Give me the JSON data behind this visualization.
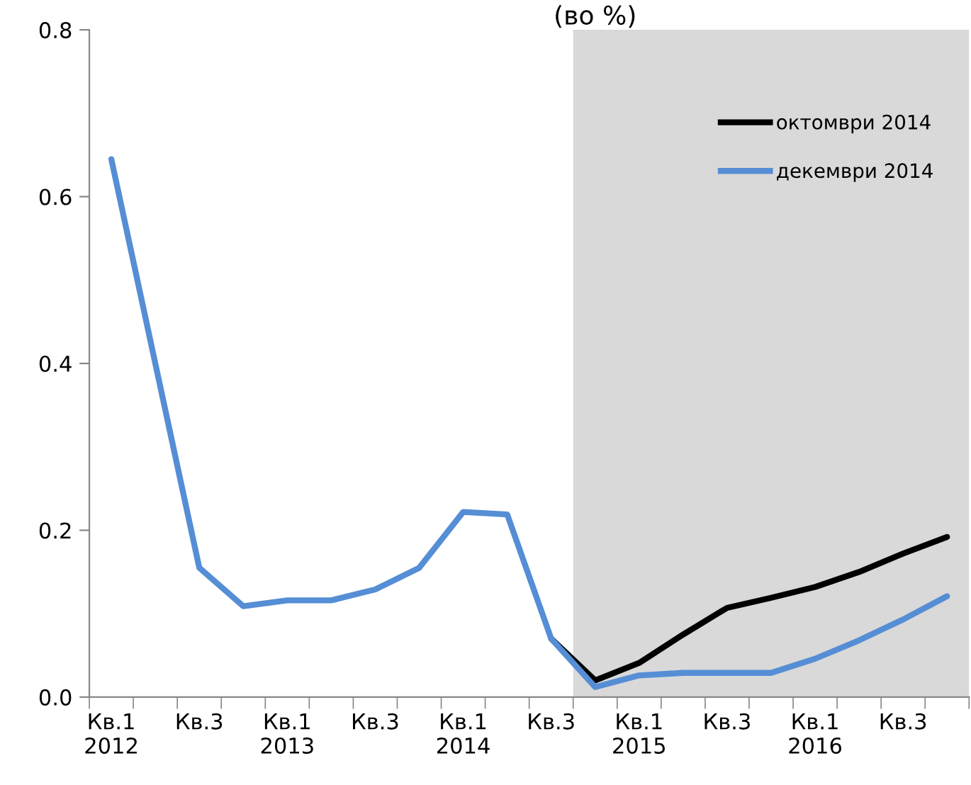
{
  "chart_data": {
    "type": "line",
    "title": "(во %)",
    "categories": [
      "Кв.1\n2012",
      null,
      "Кв.3",
      null,
      "Кв.1\n2013",
      null,
      "Кв.3",
      null,
      "Кв.1\n2014",
      null,
      "Кв.3",
      null,
      "Кв.1\n2015",
      null,
      "Кв.3",
      null,
      "Кв.1\n2016",
      null,
      "Кв.3",
      null
    ],
    "series": [
      {
        "name": "октомври 2014",
        "color": "#000000",
        "values": [
          null,
          null,
          null,
          null,
          null,
          null,
          null,
          null,
          null,
          null,
          0.07,
          0.02,
          0.041,
          0.075,
          0.107,
          0.119,
          0.132,
          0.15,
          0.172,
          0.192
        ]
      },
      {
        "name": "декември 2014",
        "color": "#558ed5",
        "values": [
          0.645,
          0.4,
          0.155,
          0.109,
          0.116,
          0.116,
          0.129,
          0.155,
          0.222,
          0.219,
          0.07,
          0.012,
          0.026,
          0.029,
          0.029,
          0.029,
          0.046,
          0.068,
          0.093,
          0.121
        ]
      }
    ],
    "ylim": [
      0,
      0.8
    ],
    "yticks": [
      {
        "value": 0,
        "label": "0.0"
      },
      {
        "value": 0.2,
        "label": "0.2"
      },
      {
        "value": 0.4,
        "label": "0.4"
      },
      {
        "value": 0.6,
        "label": "0.6"
      },
      {
        "value": 0.8,
        "label": "0.8"
      }
    ],
    "legend": "top right",
    "grid": false,
    "marker": "none",
    "line_style": "solid"
  }
}
